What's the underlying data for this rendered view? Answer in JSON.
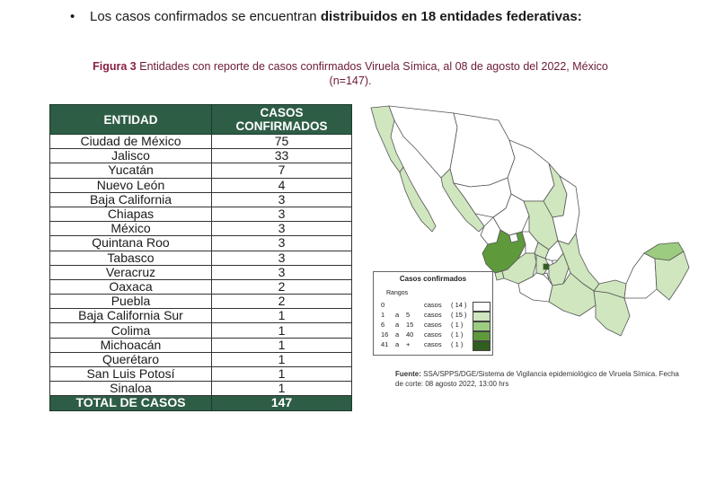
{
  "bullet": {
    "text": "Los casos confirmados se encuentran ",
    "bold": "distribuidos en 18 entidades federativas:"
  },
  "caption": {
    "label": "Figura 3",
    "line1": " Entidades con reporte de casos confirmados Viruela Símica, al 08 de agosto del 2022, México",
    "line2": "(n=147)."
  },
  "table": {
    "col_entidad": "ENTIDAD",
    "col_casos_1": "CASOS",
    "col_casos_2": "CONFIRMADOS",
    "rows": [
      {
        "entidad": "Ciudad de México",
        "casos": "75"
      },
      {
        "entidad": "Jalisco",
        "casos": "33"
      },
      {
        "entidad": "Yucatán",
        "casos": "7"
      },
      {
        "entidad": "Nuevo León",
        "casos": "4"
      },
      {
        "entidad": "Baja California",
        "casos": "3"
      },
      {
        "entidad": "Chiapas",
        "casos": "3"
      },
      {
        "entidad": "México",
        "casos": "3"
      },
      {
        "entidad": "Quintana Roo",
        "casos": "3"
      },
      {
        "entidad": "Tabasco",
        "casos": "3"
      },
      {
        "entidad": "Veracruz",
        "casos": "3"
      },
      {
        "entidad": "Oaxaca",
        "casos": "2"
      },
      {
        "entidad": "Puebla",
        "casos": "2"
      },
      {
        "entidad": "Baja California Sur",
        "casos": "1"
      },
      {
        "entidad": "Colima",
        "casos": "1"
      },
      {
        "entidad": "Michoacán",
        "casos": "1"
      },
      {
        "entidad": "Querétaro",
        "casos": "1"
      },
      {
        "entidad": "San Luis Potosí",
        "casos": "1"
      },
      {
        "entidad": "Sinaloa",
        "casos": "1"
      }
    ],
    "total_label": "TOTAL DE CASOS",
    "total_value": "147"
  },
  "legend": {
    "title": "Casos confirmados",
    "subtitle": "Rangos",
    "rows": [
      {
        "from": "0",
        "a": "",
        "to": "",
        "unit": "casos",
        "count": "( 14 )",
        "color": "#ffffff"
      },
      {
        "from": "1",
        "a": "a",
        "to": "5",
        "unit": "casos",
        "count": "( 15 )",
        "color": "#cfe6bf"
      },
      {
        "from": "6",
        "a": "a",
        "to": "15",
        "unit": "casos",
        "count": "( 1 )",
        "color": "#9ccc80"
      },
      {
        "from": "16",
        "a": "a",
        "to": "40",
        "unit": "casos",
        "count": "( 1 )",
        "color": "#5e9a3c"
      },
      {
        "from": "41",
        "a": "a",
        "to": "+",
        "unit": "casos",
        "count": "( 1 )",
        "color": "#2f5e1e"
      }
    ]
  },
  "source": {
    "label": "Fuente:",
    "text": " SSA/SPPS/DGE/Sistema de Vigilancia epidemiológico de Viruela Símica. Fecha de corte: 08 agosto 2022, 13:00 hrs"
  },
  "map_colors": {
    "none": "#ffffff",
    "low": "#cfe6bf",
    "mid": "#9ccc80",
    "high": "#5e9a3c",
    "top": "#2f5e1e",
    "border": "#555555"
  }
}
